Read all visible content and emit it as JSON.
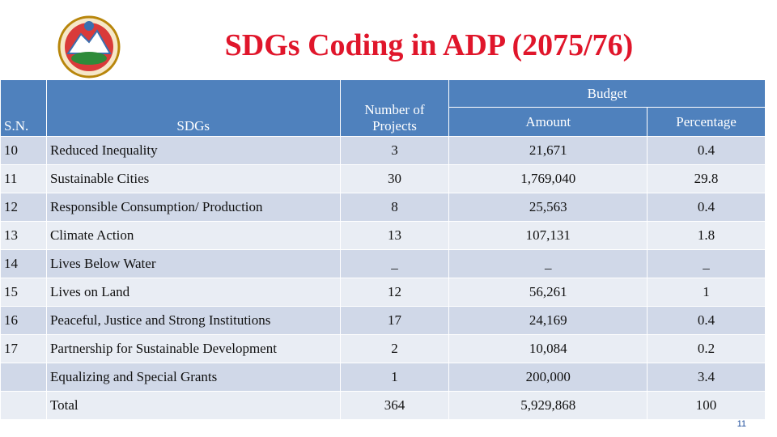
{
  "header": {
    "title": "SDGs Coding in ADP (2075/76)"
  },
  "table": {
    "columns": {
      "sn": "S.N.",
      "sdgs": "SDGs",
      "projects": "Number of Projects",
      "budget": "Budget",
      "amount": "Amount",
      "percentage": "Percentage"
    },
    "rows": [
      {
        "sn": "10",
        "sdg": "Reduced Inequality",
        "projects": "3",
        "amount": "21,671",
        "percentage": "0.4"
      },
      {
        "sn": "11",
        "sdg": "Sustainable Cities",
        "projects": "30",
        "amount": "1,769,040",
        "percentage": "29.8"
      },
      {
        "sn": "12",
        "sdg": "Responsible Consumption/ Production",
        "projects": "8",
        "amount": "25,563",
        "percentage": "0.4"
      },
      {
        "sn": "13",
        "sdg": "Climate Action",
        "projects": "13",
        "amount": "107,131",
        "percentage": "1.8"
      },
      {
        "sn": "14",
        "sdg": "Lives Below Water",
        "projects": "_",
        "amount": "_",
        "percentage": "_"
      },
      {
        "sn": "15",
        "sdg": "Lives on Land",
        "projects": "12",
        "amount": "56,261",
        "percentage": "1"
      },
      {
        "sn": "16",
        "sdg": "Peaceful, Justice and Strong Institutions",
        "projects": "17",
        "amount": "24,169",
        "percentage": "0.4"
      },
      {
        "sn": "17",
        "sdg": "Partnership for Sustainable Development",
        "projects": "2",
        "amount": "10,084",
        "percentage": "0.2"
      },
      {
        "sdg": "Equalizing and Special Grants",
        "projects": "1",
        "amount": "200,000",
        "percentage": "3.4"
      },
      {
        "sdg": "Total",
        "projects": "364",
        "amount": "5,929,868",
        "percentage": "100"
      }
    ]
  },
  "footer": {
    "page_number": "11"
  }
}
